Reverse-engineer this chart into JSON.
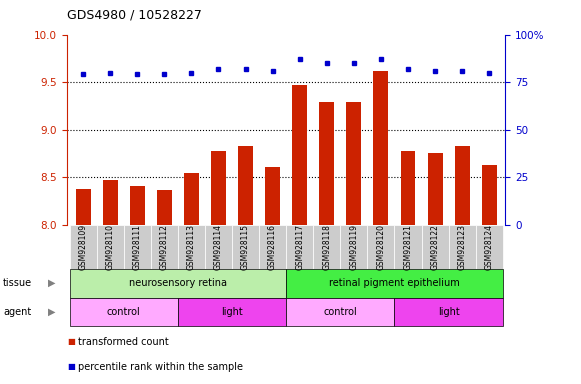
{
  "title": "GDS4980 / 10528227",
  "samples": [
    "GSM928109",
    "GSM928110",
    "GSM928111",
    "GSM928112",
    "GSM928113",
    "GSM928114",
    "GSM928115",
    "GSM928116",
    "GSM928117",
    "GSM928118",
    "GSM928119",
    "GSM928120",
    "GSM928121",
    "GSM928122",
    "GSM928123",
    "GSM928124"
  ],
  "bar_values": [
    8.38,
    8.47,
    8.41,
    8.36,
    8.54,
    8.77,
    8.83,
    8.61,
    9.47,
    9.29,
    9.29,
    9.62,
    8.77,
    8.75,
    8.83,
    8.63
  ],
  "dot_values": [
    79,
    80,
    79,
    79,
    80,
    82,
    82,
    81,
    87,
    85,
    85,
    87,
    82,
    81,
    81,
    80
  ],
  "bar_color": "#cc2200",
  "dot_color": "#0000cc",
  "ylim_left": [
    8.0,
    10.0
  ],
  "ylim_right": [
    0,
    100
  ],
  "yticks_left": [
    8.0,
    8.5,
    9.0,
    9.5,
    10.0
  ],
  "yticks_right": [
    0,
    25,
    50,
    75,
    100
  ],
  "ytick_labels_right": [
    "0",
    "25",
    "50",
    "75",
    "100%"
  ],
  "grid_values": [
    8.5,
    9.0,
    9.5
  ],
  "tissue_labels": [
    {
      "text": "neurosensory retina",
      "start": 0,
      "end": 7,
      "color": "#bbeeaa"
    },
    {
      "text": "retinal pigment epithelium",
      "start": 8,
      "end": 15,
      "color": "#44ee44"
    }
  ],
  "agent_labels": [
    {
      "text": "control",
      "start": 0,
      "end": 3,
      "color": "#ffaaff"
    },
    {
      "text": "light",
      "start": 4,
      "end": 7,
      "color": "#ee44ee"
    },
    {
      "text": "control",
      "start": 8,
      "end": 11,
      "color": "#ffaaff"
    },
    {
      "text": "light",
      "start": 12,
      "end": 15,
      "color": "#ee44ee"
    }
  ],
  "legend_items": [
    {
      "label": "transformed count",
      "color": "#cc2200"
    },
    {
      "label": "percentile rank within the sample",
      "color": "#0000cc"
    }
  ],
  "bar_color_r": "#cc2200",
  "dot_color_b": "#0000cc",
  "ylabel_left_color": "#cc2200",
  "ylabel_right_color": "#0000cc",
  "xticklabel_bg": "#cccccc",
  "background_color": "#ffffff"
}
